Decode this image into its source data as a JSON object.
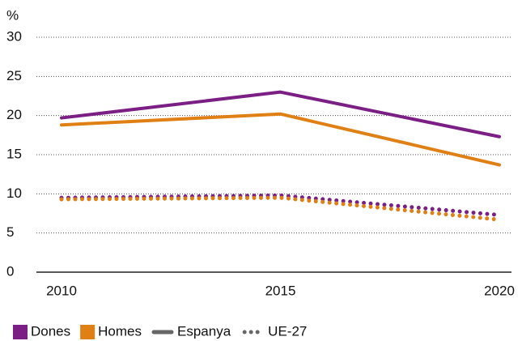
{
  "chart_data": {
    "type": "line",
    "y_label": "%",
    "x": [
      2010,
      2015,
      2020
    ],
    "xlim": [
      2010,
      2020
    ],
    "xticks": [
      2010,
      2015,
      2020
    ],
    "ylim": [
      0,
      30
    ],
    "yticks": [
      0,
      5,
      10,
      15,
      20,
      25,
      30
    ],
    "grid": true,
    "legend_colors": [
      {
        "label": "Dones",
        "color": "#7b1f85"
      },
      {
        "label": "Homes",
        "color": "#e07f14"
      }
    ],
    "legend_styles": [
      {
        "label": "Espanya",
        "dash": "solid"
      },
      {
        "label": "UE-27",
        "dash": "dotted"
      }
    ],
    "series": [
      {
        "color_key": 0,
        "style_key": 0,
        "values": [
          19.7,
          23.0,
          17.3
        ]
      },
      {
        "color_key": 1,
        "style_key": 0,
        "values": [
          18.8,
          20.2,
          13.7
        ]
      },
      {
        "color_key": 0,
        "style_key": 1,
        "values": [
          9.5,
          9.8,
          7.3
        ]
      },
      {
        "color_key": 1,
        "style_key": 1,
        "values": [
          9.3,
          9.5,
          6.7
        ]
      }
    ]
  }
}
